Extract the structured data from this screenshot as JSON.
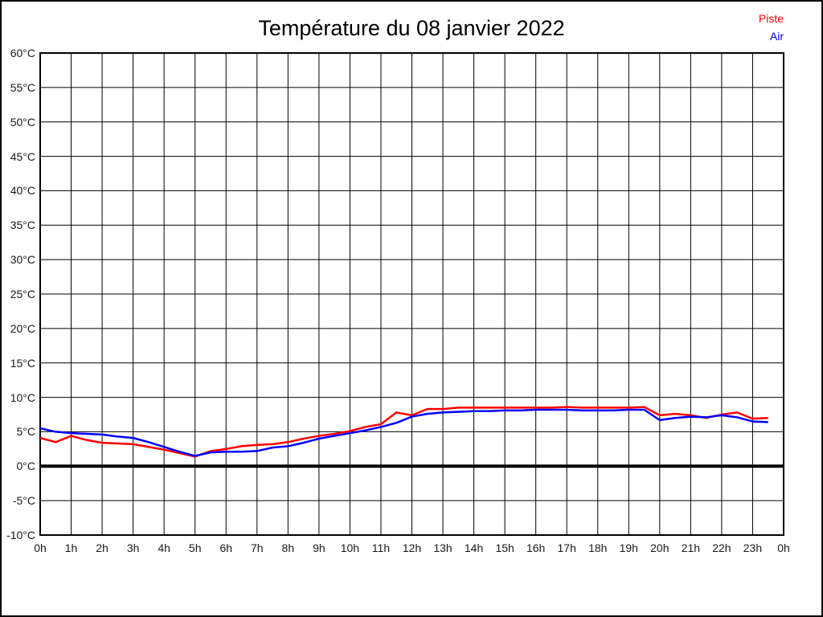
{
  "chart_data": {
    "type": "line",
    "title": "Température du 08 janvier 2022",
    "xlabel": "",
    "ylabel": "",
    "xlim": [
      0,
      24
    ],
    "ylim": [
      -10,
      60
    ],
    "grid": true,
    "zero_line_value": 0,
    "legend_position": "top-right",
    "x_tick_values": [
      0,
      1,
      2,
      3,
      4,
      5,
      6,
      7,
      8,
      9,
      10,
      11,
      12,
      13,
      14,
      15,
      16,
      17,
      18,
      19,
      20,
      21,
      22,
      23,
      24
    ],
    "x_tick_labels": [
      "0h",
      "1h",
      "2h",
      "3h",
      "4h",
      "5h",
      "6h",
      "7h",
      "8h",
      "9h",
      "10h",
      "11h",
      "12h",
      "13h",
      "14h",
      "15h",
      "16h",
      "17h",
      "18h",
      "19h",
      "20h",
      "21h",
      "22h",
      "23h",
      "0h"
    ],
    "y_tick_values": [
      60,
      55,
      50,
      45,
      40,
      35,
      30,
      25,
      20,
      15,
      10,
      5,
      0,
      -5,
      -10
    ],
    "y_tick_labels": [
      "60°C",
      "55°C",
      "50°C",
      "45°C",
      "40°C",
      "35°C",
      "30°C",
      "25°C",
      "20°C",
      "15°C",
      "10°C",
      "5°C",
      "0°C",
      "-5°C",
      "-10°C"
    ],
    "x": [
      0,
      0.5,
      1,
      1.5,
      2,
      2.5,
      3,
      3.5,
      4,
      4.5,
      5,
      5.5,
      6,
      6.5,
      7,
      7.5,
      8,
      8.5,
      9,
      9.5,
      10,
      10.5,
      11,
      11.5,
      12,
      12.5,
      13,
      13.5,
      14,
      14.5,
      15,
      15.5,
      16,
      16.5,
      17,
      17.5,
      18,
      18.5,
      19,
      19.5,
      20,
      20.5,
      21,
      21.5,
      22,
      22.5,
      23,
      23.5
    ],
    "series": [
      {
        "name": "Piste",
        "color": "#ff0000",
        "values": [
          4.1,
          3.5,
          4.4,
          3.8,
          3.4,
          3.3,
          3.2,
          2.8,
          2.4,
          1.9,
          1.4,
          2.2,
          2.5,
          2.9,
          3.1,
          3.2,
          3.5,
          4.0,
          4.4,
          4.7,
          5.1,
          5.7,
          6.1,
          7.8,
          7.4,
          8.3,
          8.3,
          8.5,
          8.5,
          8.5,
          8.5,
          8.5,
          8.5,
          8.5,
          8.6,
          8.5,
          8.5,
          8.5,
          8.5,
          8.6,
          7.4,
          7.6,
          7.4,
          7.0,
          7.5,
          7.8,
          6.9,
          7.0
        ]
      },
      {
        "name": "Air",
        "color": "#0000ff",
        "values": [
          5.5,
          5.0,
          4.8,
          4.7,
          4.6,
          4.3,
          4.1,
          3.5,
          2.8,
          2.1,
          1.5,
          2.0,
          2.1,
          2.1,
          2.2,
          2.7,
          2.9,
          3.4,
          4.0,
          4.4,
          4.8,
          5.2,
          5.7,
          6.3,
          7.2,
          7.6,
          7.8,
          7.9,
          8.0,
          8.0,
          8.1,
          8.1,
          8.2,
          8.2,
          8.2,
          8.1,
          8.1,
          8.1,
          8.2,
          8.2,
          6.7,
          7.0,
          7.2,
          7.1,
          7.4,
          7.1,
          6.5,
          6.4
        ]
      }
    ]
  }
}
